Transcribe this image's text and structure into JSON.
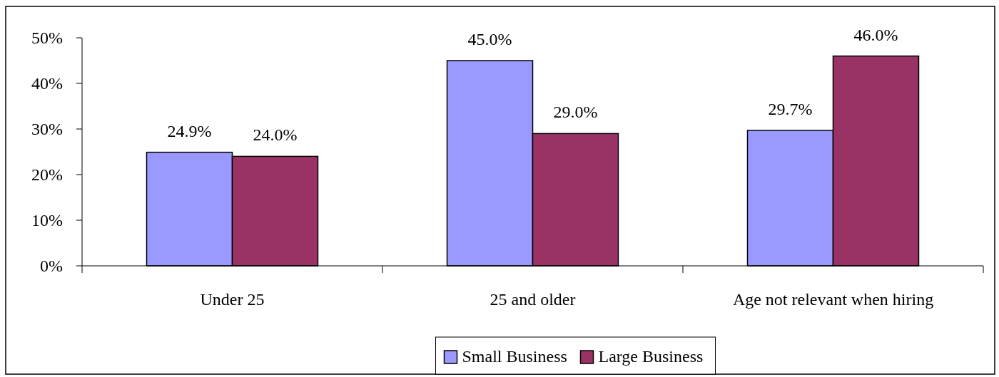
{
  "chart_data": {
    "type": "bar",
    "categories": [
      "Under 25",
      "25 and older",
      "Age not relevant when hiring"
    ],
    "series": [
      {
        "name": "Small Business",
        "color": "#9999ff",
        "values": [
          24.9,
          45.0,
          29.7
        ],
        "value_labels": [
          "24.9%",
          "45.0%",
          "29.7%"
        ]
      },
      {
        "name": "Large Business",
        "color": "#993366",
        "values": [
          24.0,
          29.0,
          46.0
        ],
        "value_labels": [
          "24.0%",
          "29.0%",
          "46.0%"
        ]
      }
    ],
    "ylim": [
      0,
      50
    ],
    "yticks": [
      {
        "value": 0,
        "label": "0%"
      },
      {
        "value": 10,
        "label": "10%"
      },
      {
        "value": 20,
        "label": "20%"
      },
      {
        "value": 30,
        "label": "30%"
      },
      {
        "value": 40,
        "label": "40%"
      },
      {
        "value": 50,
        "label": "50%"
      }
    ],
    "grid": false,
    "legend": "bottom"
  }
}
